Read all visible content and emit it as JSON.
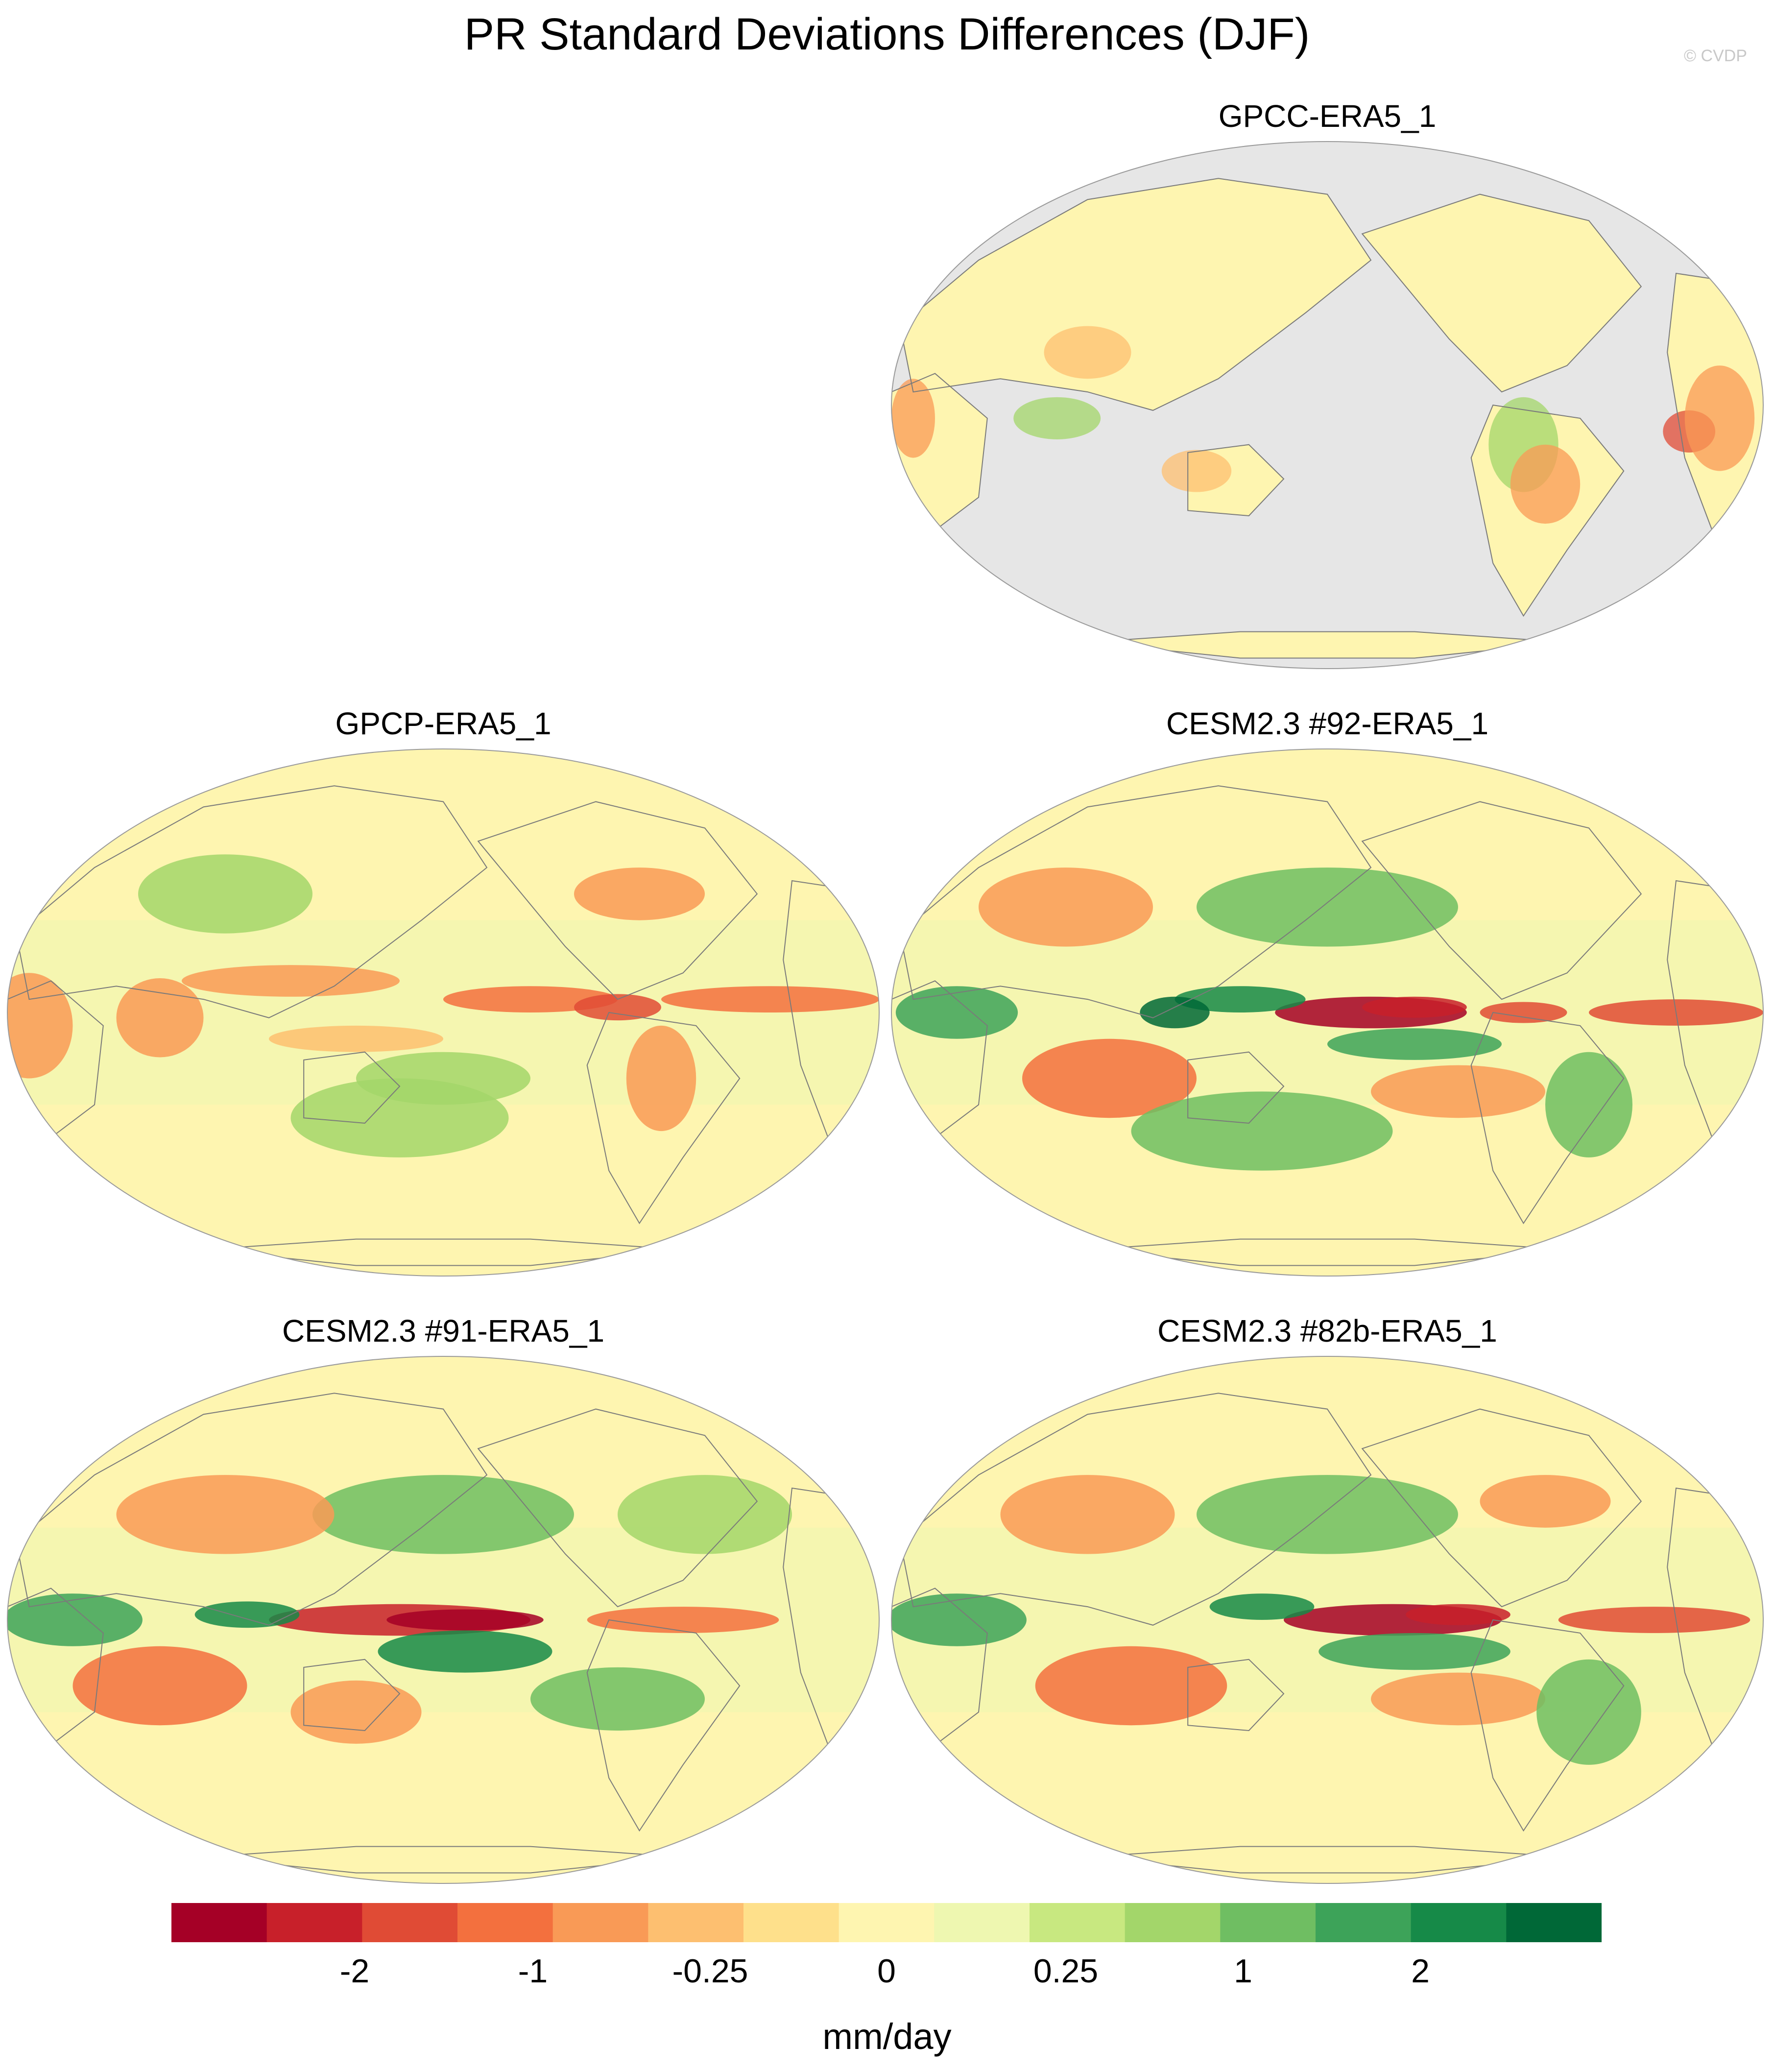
{
  "title": "PR Standard Deviations Differences (DJF)",
  "watermark": "© CVDP",
  "palette": [
    "#a50026",
    "#c8202a",
    "#e04b35",
    "#f3703e",
    "#f99a56",
    "#fdbf70",
    "#fee08b",
    "#fef5b0",
    "#eef7b0",
    "#c8e880",
    "#a3d66a",
    "#6fbe62",
    "#3da359",
    "#168a48",
    "#006837"
  ],
  "colors": {
    "ocean_land_mask": "#e6e6e6",
    "coast": "#7a7a7a",
    "outline": "#9a9a9a"
  },
  "panels": [
    {
      "id": "gpcc",
      "title": "GPCC-ERA5_1",
      "ocean_masked": true
    },
    {
      "id": "gpcp",
      "title": "GPCP-ERA5_1",
      "ocean_masked": false
    },
    {
      "id": "cesm92",
      "title": "CESM2.3 #92-ERA5_1",
      "ocean_masked": false
    },
    {
      "id": "cesm91",
      "title": "CESM2.3 #91-ERA5_1",
      "ocean_masked": false
    },
    {
      "id": "cesm82b",
      "title": "CESM2.3 #82b-ERA5_1",
      "ocean_masked": false
    }
  ],
  "colorbar": {
    "tick_labels": [
      "-2",
      "-1",
      "-0.25",
      "0",
      "0.25",
      "1",
      "2"
    ],
    "units": "mm/day"
  }
}
